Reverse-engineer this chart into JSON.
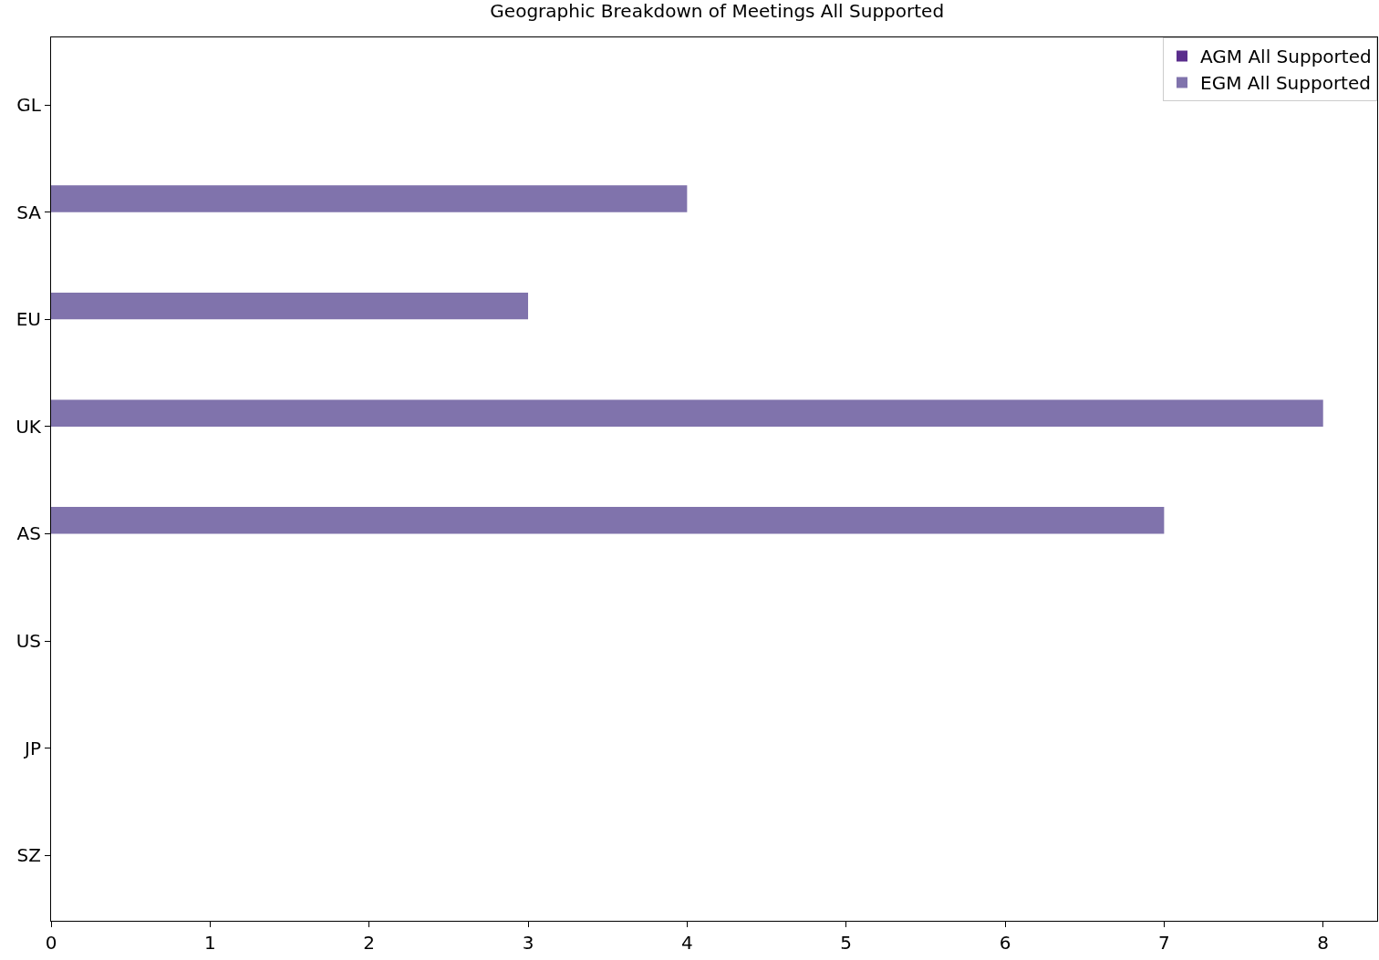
{
  "chart_data": {
    "type": "bar",
    "orientation": "horizontal",
    "title": "Geographic Breakdown of Meetings All Supported",
    "categories": [
      "GL",
      "SA",
      "EU",
      "UK",
      "AS",
      "US",
      "JP",
      "SZ"
    ],
    "series": [
      {
        "name": "AGM All Supported",
        "color": "#5a2d8c",
        "values": [
          0,
          0,
          0,
          0,
          0,
          0,
          0,
          0
        ]
      },
      {
        "name": "EGM All Supported",
        "color": "#8073ac",
        "values": [
          0,
          4,
          3,
          8,
          7,
          0,
          0,
          0
        ]
      }
    ],
    "xlim": [
      0,
      8.34
    ],
    "xticks": [
      0,
      1,
      2,
      3,
      4,
      5,
      6,
      7,
      8
    ],
    "legend": "top right"
  }
}
